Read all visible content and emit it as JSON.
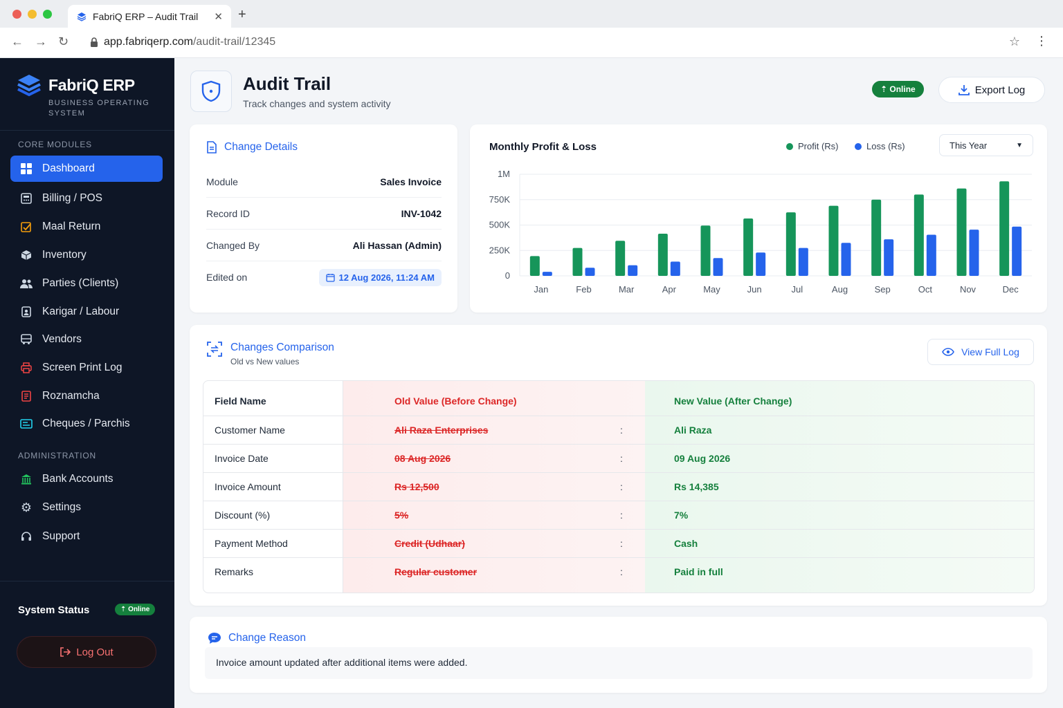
{
  "browser": {
    "tab_title": "FabriQ ERP – Audit Trail",
    "url_host": "app.fabriqerp.com",
    "url_path": "/audit-trail/12345"
  },
  "brand": {
    "name": "FabriQ ERP",
    "subtitle": "BUSINESS OPERATING SYSTEM"
  },
  "sidebar": {
    "core_label": "CORE MODULES",
    "core_items": [
      {
        "label": "Dashboard",
        "icon": "grid-icon"
      },
      {
        "label": "Billing / POS",
        "icon": "calculator-icon"
      },
      {
        "label": "Maal Return",
        "icon": "return-icon"
      },
      {
        "label": "Inventory",
        "icon": "box-icon"
      },
      {
        "label": "Parties (Clients)",
        "icon": "users-icon"
      },
      {
        "label": "Karigar / Labour",
        "icon": "badge-icon"
      },
      {
        "label": "Vendors",
        "icon": "truck-icon"
      },
      {
        "label": "Screen Print Log",
        "icon": "printer-icon"
      },
      {
        "label": "Roznamcha",
        "icon": "ledger-icon"
      },
      {
        "label": "Cheques / Parchis",
        "icon": "cheque-icon"
      }
    ],
    "admin_label": "ADMINISTRATION",
    "admin_items": [
      {
        "label": "Bank Accounts",
        "icon": "bank-icon"
      },
      {
        "label": "Settings",
        "icon": "gear-icon"
      },
      {
        "label": "Support",
        "icon": "headset-icon"
      }
    ],
    "system_status_label": "System Status",
    "system_status_value": "Online",
    "logout_label": "Log Out"
  },
  "header": {
    "title": "Audit Trail",
    "subtitle": "Track changes and system activity",
    "status_badge": "Online",
    "export_label": "Export Log"
  },
  "change_details": {
    "title": "Change Details",
    "rows": [
      {
        "label": "Module",
        "value": "Sales Invoice"
      },
      {
        "label": "Record ID",
        "value": "INV-1042"
      },
      {
        "label": "Changed By",
        "value": "Ali Hassan (Admin)"
      },
      {
        "label": "Edited on",
        "value": "12 Aug 2026, 11:24 AM"
      }
    ]
  },
  "chart_panel": {
    "period_select": "This Year"
  },
  "chart_data": {
    "type": "bar",
    "title": "Monthly Profit & Loss",
    "categories": [
      "Jan",
      "Feb",
      "Mar",
      "Apr",
      "May",
      "Jun",
      "Jul",
      "Aug",
      "Sep",
      "Oct",
      "Nov",
      "Dec"
    ],
    "series": [
      {
        "name": "Profit (Rs)",
        "color": "#16955a",
        "values": [
          195000,
          275000,
          345000,
          415000,
          495000,
          565000,
          625000,
          690000,
          750000,
          800000,
          860000,
          930000
        ]
      },
      {
        "name": "Loss (Rs)",
        "color": "#2563eb",
        "values": [
          40000,
          80000,
          105000,
          140000,
          175000,
          230000,
          275000,
          325000,
          360000,
          405000,
          455000,
          485000
        ]
      }
    ],
    "y_ticks": [
      "0",
      "250K",
      "500K",
      "750K",
      "1M"
    ],
    "ylim": [
      0,
      1000000
    ],
    "grid": true,
    "legend": "top-right"
  },
  "comparison": {
    "title": "Changes Comparison",
    "subtitle": "Old vs New values",
    "view_label": "View Full Log",
    "headers": {
      "field": "Field Name",
      "old": "Old Value (Before Change)",
      "new": "New Value (After Change)"
    },
    "rows": [
      {
        "field": "Customer Name",
        "old": "Ali Raza Enterprises",
        "sep": ":",
        "new": "Ali Raza"
      },
      {
        "field": "Invoice Date",
        "old": "08 Aug 2026",
        "sep": ":",
        "new": "09 Aug 2026"
      },
      {
        "field": "Invoice Amount",
        "old": "Rs 12,500",
        "sep": ":",
        "new": "Rs 14,385"
      },
      {
        "field": "Discount (%)",
        "old": "5%",
        "sep": ":",
        "new": "7%"
      },
      {
        "field": "Payment Method",
        "old": "Credit (Udhaar)",
        "sep": ":",
        "new": "Cash"
      },
      {
        "field": "Remarks",
        "old": "Regular customer",
        "sep": ":",
        "new": "Paid in full"
      }
    ]
  },
  "reason": {
    "title": "Change Reason",
    "text": "Invoice amount updated after additional items were added."
  },
  "colors": {
    "accent": "#2563eb",
    "sidebar_bg": "#0e1626",
    "success": "#15803d",
    "danger": "#dc2626"
  }
}
